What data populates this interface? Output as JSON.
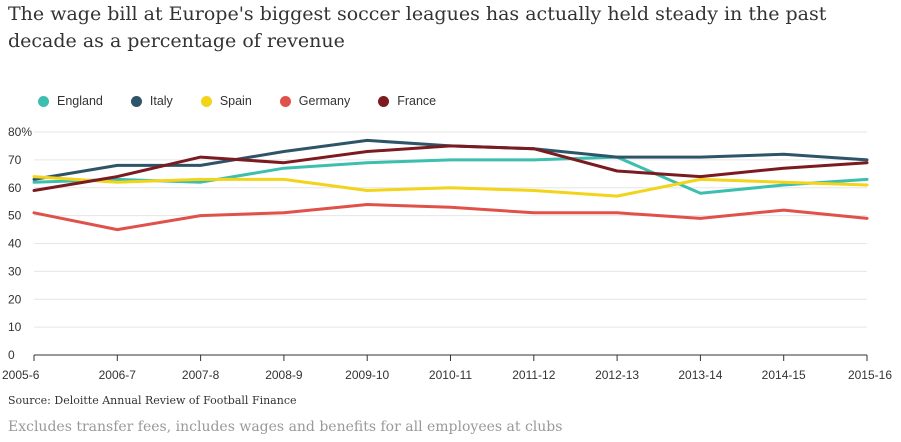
{
  "title": "The wage bill at Europe's biggest soccer leagues has actually held steady in the past decade as a percentage of revenue",
  "source": "Source: Deloitte Annual Review of Football Finance",
  "note": "Excludes transfer fees, includes wages and benefits for all employees at clubs",
  "chart_data": {
    "type": "line",
    "title": "The wage bill at Europe's biggest soccer leagues has actually held steady in the past decade as a percentage of revenue",
    "xlabel": "",
    "ylabel": "",
    "ylim": [
      0,
      80
    ],
    "yticks": [
      0,
      10,
      20,
      30,
      40,
      50,
      60,
      70,
      80
    ],
    "ytick_labels": [
      "0",
      "10",
      "20",
      "30",
      "40",
      "50",
      "60",
      "70",
      "80%"
    ],
    "grid": true,
    "legend_position": "top-left",
    "categories": [
      "2005-6",
      "2006-7",
      "2007-8",
      "2008-9",
      "2009-10",
      "2010-11",
      "2011-12",
      "2012-13",
      "2013-14",
      "2014-15",
      "2015-16"
    ],
    "series": [
      {
        "name": "England",
        "color": "#3cbfae",
        "values": [
          62,
          63,
          62,
          67,
          69,
          70,
          70,
          71,
          58,
          61,
          63
        ]
      },
      {
        "name": "Italy",
        "color": "#2e5468",
        "values": [
          63,
          68,
          68,
          73,
          77,
          75,
          74,
          71,
          71,
          72,
          70
        ]
      },
      {
        "name": "Spain",
        "color": "#f2d41a",
        "values": [
          64,
          62,
          63,
          63,
          59,
          60,
          59,
          57,
          63,
          62,
          61
        ]
      },
      {
        "name": "Germany",
        "color": "#e0514a",
        "values": [
          51,
          45,
          50,
          51,
          54,
          53,
          51,
          51,
          49,
          52,
          49
        ]
      },
      {
        "name": "France",
        "color": "#7b1b20",
        "values": [
          59,
          64,
          71,
          69,
          73,
          75,
          74,
          66,
          64,
          67,
          69
        ]
      }
    ]
  }
}
